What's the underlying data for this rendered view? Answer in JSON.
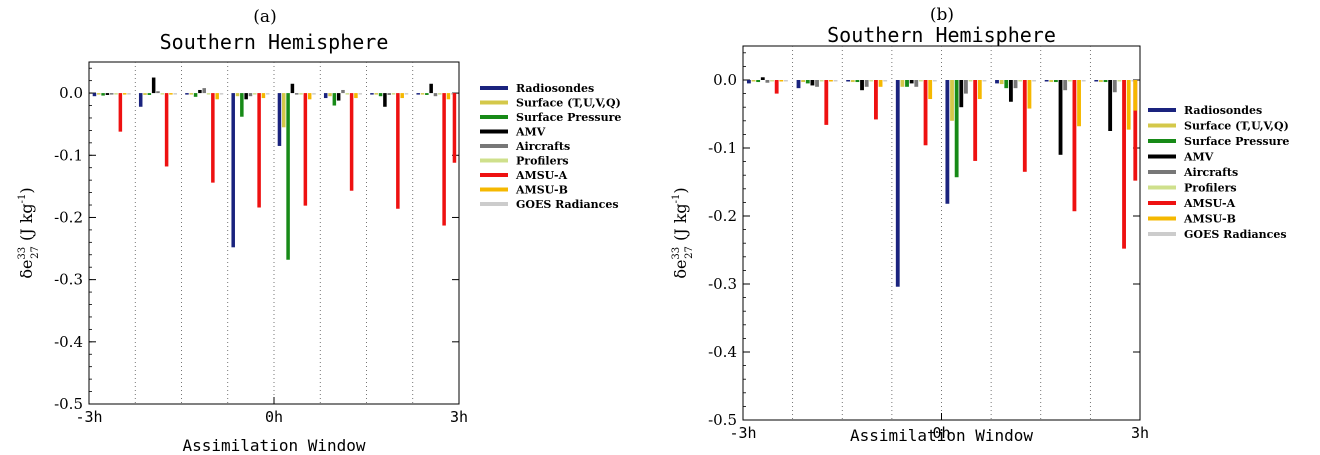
{
  "chart_data": [
    {
      "type": "bar",
      "panel_label": "(a)",
      "title": "Southern Hemisphere",
      "xlabel": "Assimilation Window",
      "ylabel_base": "δe",
      "ylabel_sup": "33",
      "ylabel_sub": "27",
      "ylabel_unit": " (J kg",
      "ylabel_unit_sup": "-1",
      "ylabel_close": ")",
      "ylim": [
        -0.5,
        0.05
      ],
      "yticks": [
        0.0,
        -0.1,
        -0.2,
        -0.3,
        -0.4,
        -0.5
      ],
      "ytick_labels": [
        "0.0",
        "-0.1",
        "-0.2",
        "-0.3",
        "-0.4",
        "-0.5"
      ],
      "xtick_labels": [
        "-3h",
        "0h",
        "3h"
      ],
      "grid": "vertical-dotted",
      "categories": [
        "1",
        "2",
        "3",
        "4",
        "5",
        "6",
        "7",
        "8"
      ],
      "series": [
        {
          "name": "Radiosondes",
          "color": "#1a237e",
          "values": [
            -0.005,
            -0.022,
            -0.002,
            -0.248,
            -0.085,
            -0.008,
            -0.002,
            -0.002
          ]
        },
        {
          "name": "Surface (T,U,V,Q)",
          "color": "#d4c84a",
          "values": [
            -0.002,
            -0.003,
            -0.002,
            -0.005,
            -0.055,
            -0.005,
            -0.002,
            -0.002
          ]
        },
        {
          "name": "Surface Pressure",
          "color": "#178a17",
          "values": [
            -0.004,
            -0.003,
            -0.006,
            -0.038,
            -0.268,
            -0.02,
            -0.005,
            -0.003
          ]
        },
        {
          "name": "AMV",
          "color": "#000000",
          "values": [
            -0.003,
            0.025,
            0.005,
            -0.01,
            0.015,
            -0.012,
            -0.022,
            0.015
          ]
        },
        {
          "name": "Aircrafts",
          "color": "#777777",
          "values": [
            -0.002,
            0.003,
            0.008,
            -0.005,
            -0.002,
            0.005,
            -0.003,
            -0.005
          ]
        },
        {
          "name": "Profilers",
          "color": "#cfe08c",
          "values": [
            -0.002,
            -0.002,
            -0.002,
            -0.002,
            -0.002,
            -0.002,
            -0.002,
            -0.002
          ]
        },
        {
          "name": "AMSU-A",
          "color": "#ee1111",
          "values": [
            -0.062,
            -0.118,
            -0.144,
            -0.184,
            -0.181,
            -0.157,
            -0.186,
            -0.213
          ]
        },
        {
          "name": "AMSU-B",
          "color": "#f5b800",
          "values": [
            -0.002,
            -0.002,
            -0.01,
            -0.008,
            -0.01,
            -0.008,
            -0.008,
            -0.01
          ]
        },
        {
          "name": "GOES Radiances",
          "color": "#cccccc",
          "values": [
            -0.002,
            -0.002,
            -0.002,
            -0.002,
            -0.002,
            -0.002,
            -0.002,
            -0.002
          ]
        }
      ],
      "extra_last_bar": {
        "series": "AMSU-A",
        "value": -0.112
      }
    },
    {
      "type": "bar",
      "panel_label": "(b)",
      "title": "Southern Hemisphere",
      "xlabel": "Assimilation Window",
      "ylabel_base": "δe",
      "ylabel_sup": "33",
      "ylabel_sub": "27",
      "ylabel_unit": " (J kg",
      "ylabel_unit_sup": "-1",
      "ylabel_close": ")",
      "ylim": [
        -0.5,
        0.05
      ],
      "yticks": [
        0.0,
        -0.1,
        -0.2,
        -0.3,
        -0.4,
        -0.5
      ],
      "ytick_labels": [
        "0.0",
        "-0.1",
        "-0.2",
        "-0.3",
        "-0.4",
        "-0.5"
      ],
      "xtick_labels": [
        "-3h",
        "0h",
        "3h"
      ],
      "grid": "vertical-dotted",
      "categories": [
        "1",
        "2",
        "3",
        "4",
        "5",
        "6",
        "7",
        "8"
      ],
      "series": [
        {
          "name": "Radiosondes",
          "color": "#1a237e",
          "values": [
            -0.005,
            -0.012,
            -0.002,
            -0.304,
            -0.182,
            -0.005,
            -0.002,
            -0.002
          ]
        },
        {
          "name": "Surface (T,U,V,Q)",
          "color": "#d4c84a",
          "values": [
            -0.002,
            -0.003,
            -0.003,
            -0.01,
            -0.06,
            -0.006,
            -0.003,
            -0.003
          ]
        },
        {
          "name": "Surface Pressure",
          "color": "#178a17",
          "values": [
            -0.003,
            -0.005,
            -0.003,
            -0.01,
            -0.143,
            -0.012,
            -0.003,
            -0.003
          ]
        },
        {
          "name": "AMV",
          "color": "#000000",
          "values": [
            0.004,
            -0.008,
            -0.015,
            -0.005,
            -0.04,
            -0.032,
            -0.11,
            -0.075
          ]
        },
        {
          "name": "Aircrafts",
          "color": "#777777",
          "values": [
            -0.004,
            -0.01,
            -0.01,
            -0.01,
            -0.02,
            -0.012,
            -0.015,
            -0.018
          ]
        },
        {
          "name": "Profilers",
          "color": "#cfe08c",
          "values": [
            -0.002,
            -0.002,
            -0.002,
            -0.002,
            -0.002,
            -0.002,
            -0.002,
            -0.002
          ]
        },
        {
          "name": "AMSU-A",
          "color": "#ee1111",
          "values": [
            -0.02,
            -0.066,
            -0.058,
            -0.096,
            -0.119,
            -0.135,
            -0.193,
            -0.248
          ]
        },
        {
          "name": "AMSU-B",
          "color": "#f5b800",
          "values": [
            -0.002,
            -0.002,
            -0.01,
            -0.028,
            -0.028,
            -0.042,
            -0.068,
            -0.073
          ]
        },
        {
          "name": "GOES Radiances",
          "color": "#cccccc",
          "values": [
            -0.002,
            -0.002,
            -0.002,
            -0.002,
            -0.002,
            -0.002,
            -0.002,
            -0.002
          ]
        }
      ],
      "extra_last_bar": {
        "series": "AMSU-A",
        "value": -0.148
      },
      "extra_last_bar2": {
        "series": "AMSU-B",
        "value": -0.045
      }
    }
  ]
}
